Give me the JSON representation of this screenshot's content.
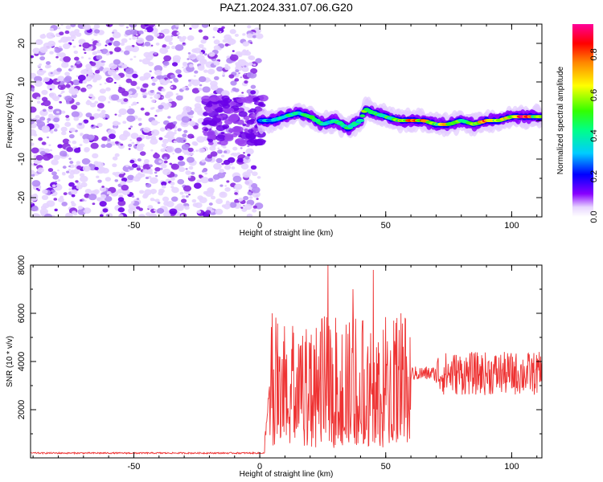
{
  "title": "PAZ1.2024.331.07.06.G20",
  "chart_data": [
    {
      "type": "heatmap",
      "xlabel": "Height of straight line (km)",
      "ylabel": "Frequency (Hz)",
      "xlim": [
        -91,
        112
      ],
      "ylim": [
        -25,
        25
      ],
      "x_ticks": [
        -50,
        0,
        50,
        100
      ],
      "y_ticks": [
        -20,
        -10,
        0,
        10,
        20
      ],
      "colorbar": {
        "label": "Normalized spectral amplitude",
        "range": [
          0,
          0.95
        ],
        "ticks": [
          "0.0",
          "0.2",
          "0.4",
          "0.6",
          "0.8"
        ],
        "colormap": [
          "#ffffff",
          "#8800ff",
          "#0000ff",
          "#00ffff",
          "#00ff00",
          "#ffff00",
          "#ff8800",
          "#ff0000",
          "#ff00aa"
        ]
      },
      "ridge": {
        "x": [
          0,
          5,
          10,
          15,
          20,
          25,
          30,
          35,
          40,
          42,
          45,
          50,
          55,
          60,
          65,
          70,
          75,
          80,
          85,
          90,
          95,
          100,
          105,
          110
        ],
        "frequency": [
          0,
          0,
          1,
          2,
          1,
          -1,
          0,
          -2,
          0,
          3,
          2,
          1,
          0,
          0,
          0,
          -1,
          -1,
          0,
          -1,
          0,
          0,
          1,
          1,
          1
        ],
        "peak_amplitude": [
          0.3,
          0.4,
          0.5,
          0.4,
          0.5,
          0.6,
          0.4,
          0.5,
          0.4,
          0.6,
          0.5,
          0.5,
          0.6,
          0.9,
          0.8,
          0.6,
          0.8,
          0.5,
          0.6,
          0.9,
          0.6,
          0.7,
          0.9,
          0.6
        ]
      },
      "noise_region_x": [
        -91,
        0
      ],
      "noise_color": "#8a2be2"
    },
    {
      "type": "line",
      "xlabel": "Height of straight line (km)",
      "ylabel": "SNR (10 * v/v)",
      "xlim": [
        -91,
        112
      ],
      "ylim": [
        0,
        8000
      ],
      "x_ticks": [
        -50,
        0,
        50,
        100
      ],
      "y_ticks": [
        2000,
        4000,
        6000,
        8000
      ],
      "color": "#ee3333",
      "segments": [
        {
          "x_range": [
            -91,
            2
          ],
          "level": 200,
          "spread": 60
        },
        {
          "x_range": [
            2,
            60
          ],
          "level": 3200,
          "spread": 2600
        },
        {
          "x_range": [
            60,
            70
          ],
          "level": 3500,
          "spread": 300
        },
        {
          "x_range": [
            70,
            112
          ],
          "level": 3500,
          "spread": 900
        }
      ],
      "spikes": [
        {
          "x": 5,
          "y": 6000
        },
        {
          "x": 27,
          "y": 8000
        },
        {
          "x": 37,
          "y": 7000
        },
        {
          "x": 45,
          "y": 7800
        },
        {
          "x": 56,
          "y": 6000
        }
      ]
    }
  ]
}
